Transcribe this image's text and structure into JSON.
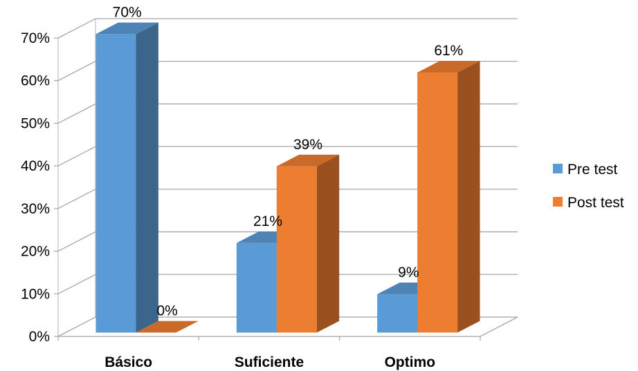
{
  "chart_data": {
    "type": "bar",
    "categories": [
      "Básico",
      "Suficiente",
      "Optimo"
    ],
    "series": [
      {
        "name": "Pre test",
        "values": [
          70,
          21,
          9
        ],
        "labels": [
          "70%",
          "21%",
          "9%"
        ],
        "color": "#5b9bd5"
      },
      {
        "name": "Post test",
        "values": [
          0,
          39,
          61
        ],
        "labels": [
          "0%",
          "39%",
          "61%"
        ],
        "color": "#ed7d31"
      }
    ],
    "y_ticks": [
      "0%",
      "10%",
      "20%",
      "30%",
      "40%",
      "50%",
      "60%",
      "70%"
    ],
    "ylim": [
      0,
      70
    ],
    "grid": true,
    "legend_position": "right",
    "title": "",
    "xlabel": "",
    "ylabel": ""
  }
}
